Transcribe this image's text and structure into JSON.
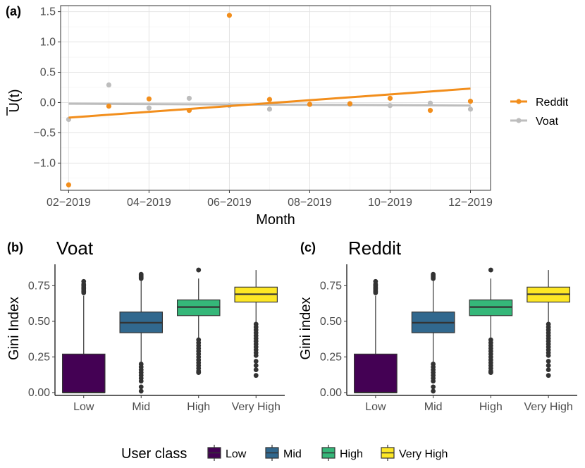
{
  "chart_data": [
    {
      "panel": "(a)",
      "type": "scatter",
      "title": "",
      "xlabel": "Month",
      "ylabel": "U(t)",
      "ylim": [
        -1.45,
        1.6
      ],
      "yticks": [
        1.5,
        1.0,
        0.5,
        0.0,
        -0.5,
        -1.0
      ],
      "ytick_labels": [
        "1.5",
        "1.0",
        "0.5",
        "0.0",
        "−0.5",
        "−1.0"
      ],
      "x_tick_labels": [
        "02−2019",
        "04−2019",
        "06−2019",
        "08−2019",
        "10−2019",
        "12−2019"
      ],
      "x_tick_months": [
        1,
        3,
        5,
        7,
        9,
        11
      ],
      "months": [
        1,
        2,
        3,
        4,
        5,
        6,
        7,
        8,
        9,
        10,
        11
      ],
      "series": [
        {
          "name": "Reddit",
          "color": "#f28e1c",
          "values": [
            -1.36,
            -0.06,
            0.06,
            -0.13,
            1.44,
            0.05,
            -0.03,
            -0.02,
            0.07,
            -0.13,
            0.02
          ],
          "trend": [
            -0.25,
            0.23
          ]
        },
        {
          "name": "Voat",
          "color": "#bdbdbd",
          "values": [
            -0.28,
            0.29,
            -0.09,
            0.07,
            -0.05,
            -0.11,
            -0.03,
            -0.03,
            -0.05,
            -0.01,
            -0.11
          ],
          "trend": [
            -0.02,
            -0.05
          ]
        }
      ],
      "legend": [
        "Reddit",
        "Voat"
      ],
      "legend_position": "right"
    },
    {
      "panel": "(b)",
      "type": "box",
      "title": "Voat",
      "xlabel": "",
      "ylabel": "Gini Index",
      "ylim": [
        -0.02,
        0.9
      ],
      "yticks": [
        0.0,
        0.25,
        0.5,
        0.75
      ],
      "ytick_labels": [
        "0.00",
        "0.25",
        "0.50",
        "0.75"
      ],
      "categories": [
        "Low",
        "Mid",
        "High",
        "Very High"
      ],
      "boxes": [
        {
          "class": "Low",
          "color": "#440154",
          "q1": 0.0,
          "median": 0.0,
          "q3": 0.27,
          "wmin": 0.0,
          "wmax": 0.68,
          "outliers": [
            0.7,
            0.71,
            0.72,
            0.73,
            0.74,
            0.75,
            0.76,
            0.78
          ]
        },
        {
          "class": "Mid",
          "color": "#31688e",
          "q1": 0.42,
          "median": 0.49,
          "q3": 0.565,
          "wmin": 0.21,
          "wmax": 0.79,
          "outliers": [
            0.8,
            0.81,
            0.82,
            0.83,
            0.2,
            0.18,
            0.16,
            0.14,
            0.12,
            0.1,
            0.08,
            0.04,
            0.01
          ]
        },
        {
          "class": "High",
          "color": "#35b779",
          "q1": 0.54,
          "median": 0.6,
          "q3": 0.65,
          "wmin": 0.38,
          "wmax": 0.8,
          "outliers": [
            0.86,
            0.37,
            0.35,
            0.33,
            0.31,
            0.29,
            0.27,
            0.25,
            0.23,
            0.21,
            0.19,
            0.17,
            0.15,
            0.14
          ]
        },
        {
          "class": "Very High",
          "color": "#fde725",
          "q1": 0.635,
          "median": 0.69,
          "q3": 0.74,
          "wmin": 0.49,
          "wmax": 0.86,
          "outliers": [
            0.48,
            0.46,
            0.44,
            0.42,
            0.4,
            0.38,
            0.36,
            0.34,
            0.32,
            0.3,
            0.28,
            0.26,
            0.22,
            0.19,
            0.16,
            0.12
          ]
        }
      ]
    },
    {
      "panel": "(c)",
      "type": "box",
      "title": "Reddit",
      "xlabel": "",
      "ylabel": "Gini index",
      "ylim": [
        -0.02,
        0.9
      ],
      "yticks": [
        0.0,
        0.25,
        0.5,
        0.75
      ],
      "ytick_labels": [
        "0.00",
        "0.25",
        "0.50",
        "0.75"
      ],
      "categories": [
        "Low",
        "Mid",
        "High",
        "Very High"
      ],
      "boxes": [
        {
          "class": "Low",
          "color": "#440154",
          "q1": 0.0,
          "median": 0.0,
          "q3": 0.27,
          "wmin": 0.0,
          "wmax": 0.68,
          "outliers": [
            0.7,
            0.71,
            0.72,
            0.73,
            0.74,
            0.75,
            0.76,
            0.78
          ]
        },
        {
          "class": "Mid",
          "color": "#31688e",
          "q1": 0.42,
          "median": 0.49,
          "q3": 0.565,
          "wmin": 0.21,
          "wmax": 0.79,
          "outliers": [
            0.8,
            0.81,
            0.82,
            0.83,
            0.2,
            0.18,
            0.16,
            0.14,
            0.12,
            0.1,
            0.08,
            0.04,
            0.01
          ]
        },
        {
          "class": "High",
          "color": "#35b779",
          "q1": 0.54,
          "median": 0.6,
          "q3": 0.65,
          "wmin": 0.38,
          "wmax": 0.8,
          "outliers": [
            0.86,
            0.37,
            0.35,
            0.33,
            0.31,
            0.29,
            0.27,
            0.25,
            0.23,
            0.21,
            0.19,
            0.17,
            0.15,
            0.14
          ]
        },
        {
          "class": "Very High",
          "color": "#fde725",
          "q1": 0.635,
          "median": 0.69,
          "q3": 0.74,
          "wmin": 0.49,
          "wmax": 0.86,
          "outliers": [
            0.48,
            0.46,
            0.44,
            0.42,
            0.4,
            0.38,
            0.36,
            0.34,
            0.32,
            0.3,
            0.28,
            0.26,
            0.22,
            0.19,
            0.16,
            0.12
          ]
        }
      ]
    }
  ],
  "bottom_legend": {
    "title": "User class",
    "items": [
      {
        "label": "Low",
        "color": "#440154"
      },
      {
        "label": "Mid",
        "color": "#31688e"
      },
      {
        "label": "High",
        "color": "#35b779"
      },
      {
        "label": "Very High",
        "color": "#fde725"
      }
    ]
  }
}
